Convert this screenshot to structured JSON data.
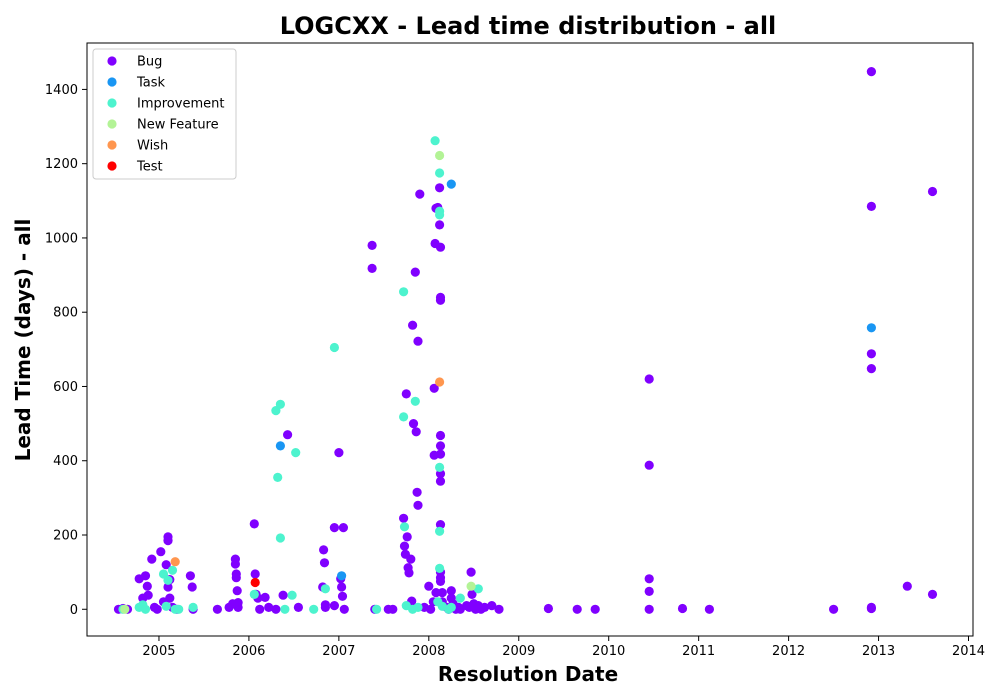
{
  "chart_data": {
    "type": "scatter",
    "title": "LOGCXX - Lead time distribution - all",
    "xlabel": "Resolution Date",
    "ylabel": "Lead Time (days) - all",
    "xlim": [
      2004.2,
      2014.05
    ],
    "ylim": [
      -72,
      1525
    ],
    "x_ticks": [
      2005,
      2006,
      2007,
      2008,
      2009,
      2010,
      2011,
      2012,
      2013,
      2014
    ],
    "y_ticks": [
      0,
      200,
      400,
      600,
      800,
      1000,
      1200,
      1400
    ],
    "grid": false,
    "legend_position": "top-left",
    "series": [
      {
        "name": "Bug",
        "color": "#8000ff",
        "points": [
          [
            2004.55,
            0
          ],
          [
            2004.6,
            2
          ],
          [
            2004.65,
            0
          ],
          [
            2004.78,
            82
          ],
          [
            2004.82,
            30
          ],
          [
            2004.85,
            90
          ],
          [
            2004.87,
            62
          ],
          [
            2004.88,
            38
          ],
          [
            2004.92,
            135
          ],
          [
            2004.95,
            5
          ],
          [
            2004.98,
            0
          ],
          [
            2005.02,
            155
          ],
          [
            2005.05,
            20
          ],
          [
            2005.08,
            120
          ],
          [
            2005.1,
            195
          ],
          [
            2005.1,
            185
          ],
          [
            2005.12,
            80
          ],
          [
            2005.12,
            30
          ],
          [
            2005.1,
            60
          ],
          [
            2005.15,
            5
          ],
          [
            2005.2,
            0
          ],
          [
            2005.35,
            90
          ],
          [
            2005.37,
            60
          ],
          [
            2005.38,
            0
          ],
          [
            2005.65,
            0
          ],
          [
            2005.78,
            5
          ],
          [
            2005.82,
            15
          ],
          [
            2005.85,
            135
          ],
          [
            2005.85,
            122
          ],
          [
            2005.86,
            95
          ],
          [
            2005.86,
            85
          ],
          [
            2005.87,
            50
          ],
          [
            2005.88,
            5
          ],
          [
            2005.88,
            18
          ],
          [
            2006.06,
            230
          ],
          [
            2006.07,
            95
          ],
          [
            2006.08,
            40
          ],
          [
            2006.1,
            30
          ],
          [
            2006.12,
            0
          ],
          [
            2006.18,
            32
          ],
          [
            2006.22,
            5
          ],
          [
            2006.3,
            0
          ],
          [
            2006.38,
            38
          ],
          [
            2006.43,
            470
          ],
          [
            2006.55,
            5
          ],
          [
            2006.82,
            60
          ],
          [
            2006.83,
            160
          ],
          [
            2006.84,
            125
          ],
          [
            2006.85,
            5
          ],
          [
            2006.85,
            12
          ],
          [
            2006.95,
            220
          ],
          [
            2006.95,
            10
          ],
          [
            2007.0,
            422
          ],
          [
            2007.02,
            82
          ],
          [
            2007.03,
            60
          ],
          [
            2007.04,
            35
          ],
          [
            2007.05,
            220
          ],
          [
            2007.06,
            0
          ],
          [
            2007.37,
            980
          ],
          [
            2007.37,
            918
          ],
          [
            2007.4,
            0
          ],
          [
            2007.55,
            0
          ],
          [
            2007.6,
            0
          ],
          [
            2007.72,
            245
          ],
          [
            2007.73,
            170
          ],
          [
            2007.74,
            148
          ],
          [
            2007.75,
            580
          ],
          [
            2007.76,
            195
          ],
          [
            2007.77,
            112
          ],
          [
            2007.78,
            98
          ],
          [
            2007.8,
            135
          ],
          [
            2007.81,
            22
          ],
          [
            2007.82,
            765
          ],
          [
            2007.83,
            500
          ],
          [
            2007.85,
            908
          ],
          [
            2007.86,
            478
          ],
          [
            2007.87,
            315
          ],
          [
            2007.88,
            280
          ],
          [
            2007.88,
            722
          ],
          [
            2007.9,
            1118
          ],
          [
            2007.95,
            5
          ],
          [
            2008.0,
            62
          ],
          [
            2008.02,
            0
          ],
          [
            2008.05,
            20
          ],
          [
            2008.06,
            595
          ],
          [
            2008.06,
            415
          ],
          [
            2008.07,
            985
          ],
          [
            2008.08,
            1080
          ],
          [
            2008.08,
            45
          ],
          [
            2008.1,
            1082
          ],
          [
            2008.12,
            1135
          ],
          [
            2008.12,
            1035
          ],
          [
            2008.13,
            975
          ],
          [
            2008.13,
            840
          ],
          [
            2008.13,
            832
          ],
          [
            2008.13,
            468
          ],
          [
            2008.13,
            440
          ],
          [
            2008.13,
            418
          ],
          [
            2008.13,
            365
          ],
          [
            2008.13,
            345
          ],
          [
            2008.13,
            228
          ],
          [
            2008.13,
            100
          ],
          [
            2008.13,
            85
          ],
          [
            2008.13,
            75
          ],
          [
            2008.15,
            45
          ],
          [
            2008.15,
            20
          ],
          [
            2008.2,
            5
          ],
          [
            2008.22,
            0
          ],
          [
            2008.25,
            50
          ],
          [
            2008.25,
            30
          ],
          [
            2008.27,
            15
          ],
          [
            2008.3,
            0
          ],
          [
            2008.33,
            5
          ],
          [
            2008.35,
            0
          ],
          [
            2008.42,
            10
          ],
          [
            2008.45,
            5
          ],
          [
            2008.47,
            100
          ],
          [
            2008.48,
            40
          ],
          [
            2008.5,
            15
          ],
          [
            2008.5,
            5
          ],
          [
            2008.52,
            0
          ],
          [
            2008.55,
            10
          ],
          [
            2008.58,
            0
          ],
          [
            2008.62,
            5
          ],
          [
            2008.7,
            10
          ],
          [
            2008.78,
            0
          ],
          [
            2009.33,
            2
          ],
          [
            2009.65,
            0
          ],
          [
            2009.85,
            0
          ],
          [
            2010.45,
            620
          ],
          [
            2010.45,
            388
          ],
          [
            2010.45,
            82
          ],
          [
            2010.45,
            48
          ],
          [
            2010.45,
            0
          ],
          [
            2010.82,
            2
          ],
          [
            2011.12,
            0
          ],
          [
            2012.5,
            0
          ],
          [
            2012.92,
            1448
          ],
          [
            2012.92,
            1085
          ],
          [
            2012.92,
            688
          ],
          [
            2012.92,
            648
          ],
          [
            2012.92,
            5
          ],
          [
            2012.92,
            2
          ],
          [
            2013.32,
            62
          ],
          [
            2013.6,
            1125
          ],
          [
            2013.6,
            40
          ]
        ]
      },
      {
        "name": "Task",
        "color": "#1996f3",
        "points": [
          [
            2006.35,
            440
          ],
          [
            2007.03,
            90
          ],
          [
            2008.25,
            1145
          ],
          [
            2012.92,
            758
          ]
        ]
      },
      {
        "name": "Improvement",
        "color": "#4df3ce",
        "points": [
          [
            2004.6,
            0
          ],
          [
            2004.78,
            5
          ],
          [
            2004.82,
            12
          ],
          [
            2004.85,
            0
          ],
          [
            2005.05,
            95
          ],
          [
            2005.08,
            8
          ],
          [
            2005.1,
            78
          ],
          [
            2005.15,
            105
          ],
          [
            2005.18,
            0
          ],
          [
            2005.22,
            0
          ],
          [
            2005.38,
            5
          ],
          [
            2006.06,
            40
          ],
          [
            2006.3,
            535
          ],
          [
            2006.32,
            355
          ],
          [
            2006.35,
            552
          ],
          [
            2006.35,
            192
          ],
          [
            2006.4,
            0
          ],
          [
            2006.48,
            38
          ],
          [
            2006.52,
            422
          ],
          [
            2006.72,
            0
          ],
          [
            2006.85,
            55
          ],
          [
            2006.95,
            705
          ],
          [
            2007.42,
            0
          ],
          [
            2007.72,
            855
          ],
          [
            2007.72,
            518
          ],
          [
            2007.73,
            222
          ],
          [
            2007.75,
            10
          ],
          [
            2007.82,
            0
          ],
          [
            2007.88,
            5
          ],
          [
            2007.85,
            560
          ],
          [
            2008.07,
            1262
          ],
          [
            2008.12,
            1175
          ],
          [
            2008.12,
            1072
          ],
          [
            2008.12,
            1062
          ],
          [
            2008.12,
            382
          ],
          [
            2008.12,
            210
          ],
          [
            2008.12,
            110
          ],
          [
            2008.1,
            20
          ],
          [
            2008.15,
            8
          ],
          [
            2008.22,
            0
          ],
          [
            2008.25,
            5
          ],
          [
            2008.35,
            30
          ],
          [
            2008.55,
            55
          ]
        ]
      },
      {
        "name": "New Feature",
        "color": "#b3f396",
        "points": [
          [
            2004.62,
            0
          ],
          [
            2008.12,
            1222
          ],
          [
            2008.47,
            62
          ]
        ]
      },
      {
        "name": "Wish",
        "color": "#ff964f",
        "points": [
          [
            2005.18,
            128
          ],
          [
            2008.12,
            612
          ]
        ]
      },
      {
        "name": "Test",
        "color": "#ff0000",
        "points": [
          [
            2006.07,
            72
          ]
        ]
      }
    ]
  }
}
